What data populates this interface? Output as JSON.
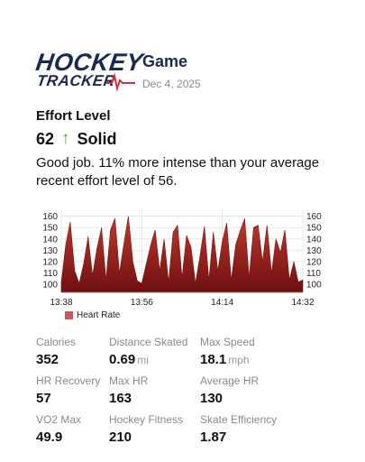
{
  "header": {
    "logo_top": "HOCKEY",
    "logo_bottom": "TRACKER",
    "title": "Game",
    "date": "Dec 4, 2025"
  },
  "effort": {
    "label": "Effort Level",
    "value": "62",
    "arrow": "↑",
    "rating": "Solid",
    "description": "Good job. 11% more intense than your average recent effort level of 56.",
    "arrow_color": "#2fb34a"
  },
  "chart_data": {
    "type": "area",
    "series": [
      {
        "name": "Heart Rate",
        "color": "#8b1a1a",
        "x_minutes": [
          0,
          1,
          2,
          3,
          4,
          5,
          6,
          7,
          8,
          9,
          10,
          11,
          12,
          13,
          14,
          15,
          16,
          17,
          18,
          19,
          20,
          21,
          22,
          23,
          24,
          25,
          26,
          27,
          28,
          29,
          30,
          31,
          32,
          33,
          34,
          35,
          36,
          37,
          38,
          39,
          40,
          41,
          42,
          43,
          44,
          45,
          46,
          47,
          48,
          49,
          50,
          51,
          52,
          53,
          54
        ],
        "values": [
          102,
          135,
          155,
          112,
          101,
          118,
          142,
          108,
          132,
          150,
          104,
          148,
          158,
          110,
          136,
          160,
          120,
          103,
          101,
          118,
          135,
          148,
          112,
          140,
          102,
          146,
          152,
          106,
          143,
          133,
          101,
          125,
          151,
          104,
          146,
          112,
          138,
          154,
          104,
          135,
          147,
          158,
          106,
          150,
          152,
          120,
          152,
          110,
          140,
          128,
          148,
          104,
          120,
          102,
          104
        ]
      }
    ],
    "x_tick_labels": [
      "13:38",
      "13:56",
      "14:14",
      "14:32"
    ],
    "y_ticks": [
      100,
      110,
      120,
      130,
      140,
      150,
      160
    ],
    "ylim": [
      93,
      166
    ],
    "xlim_minutes": [
      0,
      54
    ],
    "grid": true,
    "legend": "bottom-left"
  },
  "legend": {
    "label": "Heart Rate",
    "color": "#c9585a"
  },
  "stats": [
    {
      "label": "Calories",
      "value": "352",
      "unit": ""
    },
    {
      "label": "Distance Skated",
      "value": "0.69",
      "unit": "mi"
    },
    {
      "label": "Max Speed",
      "value": "18.1",
      "unit": "mph"
    },
    {
      "label": "HR Recovery",
      "value": "57",
      "unit": ""
    },
    {
      "label": "Max HR",
      "value": "163",
      "unit": ""
    },
    {
      "label": "Average HR",
      "value": "130",
      "unit": ""
    },
    {
      "label": "VO2 Max",
      "value": "49.9",
      "unit": ""
    },
    {
      "label": "Hockey Fitness",
      "value": "210",
      "unit": ""
    },
    {
      "label": "Skate Efficiency",
      "value": "1.87",
      "unit": ""
    }
  ]
}
